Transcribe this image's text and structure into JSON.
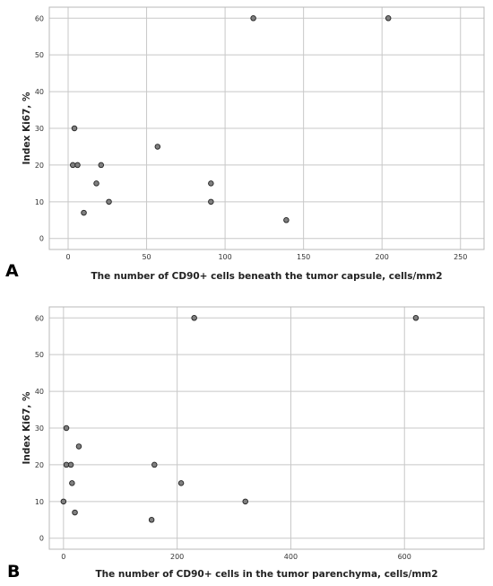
{
  "chart_data": [
    {
      "type": "scatter",
      "panel_label": "A",
      "xlabel": "The number of CD90+ cells beneath the tumor capsule, cells/mm2",
      "ylabel": "Index Ki67, %",
      "xlim": [
        -12,
        265
      ],
      "ylim": [
        -3,
        63
      ],
      "xticks": [
        0,
        50,
        100,
        150,
        200,
        250
      ],
      "yticks": [
        0,
        10,
        20,
        30,
        40,
        50,
        60
      ],
      "grid": true,
      "points": [
        {
          "x": 118,
          "y": 60
        },
        {
          "x": 204,
          "y": 60
        },
        {
          "x": 4,
          "y": 30
        },
        {
          "x": 57,
          "y": 25
        },
        {
          "x": 3,
          "y": 20
        },
        {
          "x": 6,
          "y": 20
        },
        {
          "x": 21,
          "y": 20
        },
        {
          "x": 18,
          "y": 15
        },
        {
          "x": 91,
          "y": 15
        },
        {
          "x": 26,
          "y": 10
        },
        {
          "x": 91,
          "y": 10
        },
        {
          "x": 10,
          "y": 7
        },
        {
          "x": 139,
          "y": 5
        }
      ]
    },
    {
      "type": "scatter",
      "panel_label": "B",
      "xlabel": "The number of CD90+ cells in the tumor parenchyma, cells/mm2",
      "ylabel": "Index Ki67, %",
      "xlim": [
        -25,
        740
      ],
      "ylim": [
        -3,
        63
      ],
      "xticks": [
        0,
        200,
        400,
        600
      ],
      "yticks": [
        0,
        10,
        20,
        30,
        40,
        50,
        60
      ],
      "grid": true,
      "points": [
        {
          "x": 230,
          "y": 60
        },
        {
          "x": 620,
          "y": 60
        },
        {
          "x": 5,
          "y": 30
        },
        {
          "x": 27,
          "y": 25
        },
        {
          "x": 5,
          "y": 20
        },
        {
          "x": 13,
          "y": 20
        },
        {
          "x": 160,
          "y": 20
        },
        {
          "x": 15,
          "y": 15
        },
        {
          "x": 207,
          "y": 15
        },
        {
          "x": 0,
          "y": 10
        },
        {
          "x": 320,
          "y": 10
        },
        {
          "x": 20,
          "y": 7
        },
        {
          "x": 155,
          "y": 5
        }
      ]
    }
  ]
}
